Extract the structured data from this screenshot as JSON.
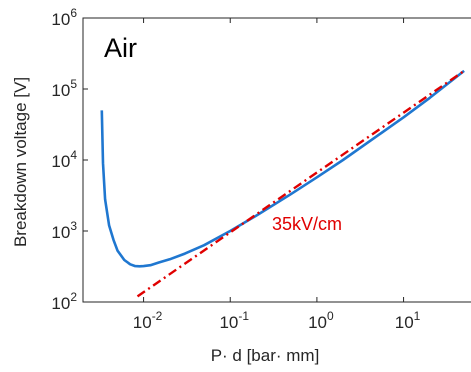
{
  "chart_data": {
    "type": "line",
    "title": "",
    "xlabel": "P· d [bar· mm]",
    "ylabel": "Breakdown voltage [V]",
    "xscale": "log",
    "yscale": "log",
    "xlim": [
      0.002,
      60
    ],
    "ylim": [
      100,
      1000000
    ],
    "grid": false,
    "x_ticks": [
      {
        "base": "10",
        "exp": "-2",
        "value": 0.01
      },
      {
        "base": "10",
        "exp": "-1",
        "value": 0.1
      },
      {
        "base": "10",
        "exp": "0",
        "value": 1
      },
      {
        "base": "10",
        "exp": "1",
        "value": 10
      }
    ],
    "y_ticks": [
      {
        "base": "10",
        "exp": "2",
        "value": 100
      },
      {
        "base": "10",
        "exp": "3",
        "value": 1000
      },
      {
        "base": "10",
        "exp": "4",
        "value": 10000
      },
      {
        "base": "10",
        "exp": "5",
        "value": 100000
      },
      {
        "base": "10",
        "exp": "6",
        "value": 1000000
      }
    ],
    "panel_label": "Air",
    "annotation": {
      "text": "35kV/cm",
      "color": "#e00000"
    },
    "series": [
      {
        "color": "#1f77d0",
        "style": "solid",
        "x": [
          0.0033,
          0.0034,
          0.0036,
          0.004,
          0.0045,
          0.005,
          0.006,
          0.007,
          0.008,
          0.009,
          0.01,
          0.012,
          0.015,
          0.02,
          0.03,
          0.05,
          0.1,
          0.2,
          0.5,
          1,
          2,
          5,
          10,
          20,
          50
        ],
        "y": [
          50000,
          9000,
          2800,
          1200,
          750,
          530,
          390,
          340,
          320,
          318,
          320,
          330,
          360,
          400,
          480,
          630,
          1000,
          1650,
          3300,
          5700,
          10000,
          22000,
          40000,
          75000,
          180000
        ]
      },
      {
        "color": "#e00000",
        "style": "dashdot",
        "x": [
          0.0085,
          50
        ],
        "y": [
          120,
          180000
        ]
      }
    ]
  }
}
